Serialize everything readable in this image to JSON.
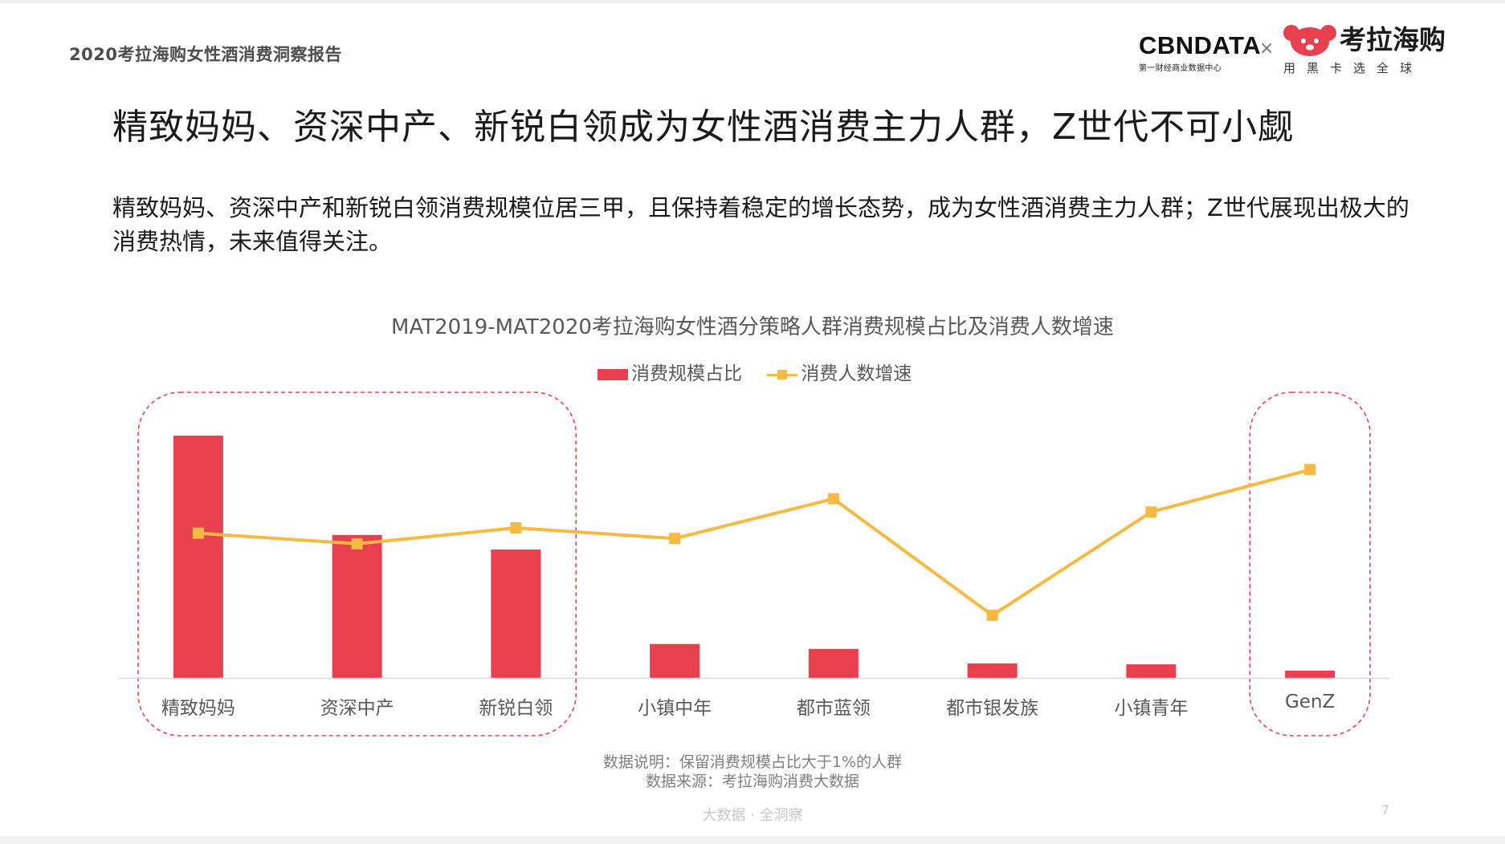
{
  "report_name": "2020考拉海购女性酒消费洞察报告",
  "logos": {
    "cbn_name": "CBNDATA",
    "cbn_sub": "第一财经商业数据中心",
    "separator": "×",
    "kaola_name": "考拉海购",
    "kaola_slogan": "用黑卡选全球"
  },
  "headline": "精致妈妈、资深中产、新锐白领成为女性酒消费主力人群，Z世代不可小觑",
  "summary": "精致妈妈、资深中产和新锐白领消费规模位居三甲，且保持着稳定的增长态势，成为女性酒消费主力人群；Z世代展现出极大的消费热情，未来值得关注。",
  "chart_data": {
    "type": "bar",
    "title": "MAT2019-MAT2020考拉海购女性酒分策略人群消费规模占比及消费人数增速",
    "categories": [
      "精致妈妈",
      "资深中产",
      "新锐白领",
      "小镇中年",
      "都市蓝领",
      "都市银发族",
      "小镇青年",
      "GenZ"
    ],
    "series": [
      {
        "name": "消费规模占比",
        "type": "bar",
        "color": "#e8404f",
        "values": [
          100,
          59,
          53,
          14,
          12,
          6,
          5.6,
          3
        ]
      },
      {
        "name": "消费人数增速",
        "type": "line",
        "color": "#f6b942",
        "values": [
          58,
          54,
          60,
          56,
          71,
          27,
          66,
          82
        ]
      }
    ],
    "highlighted_groups": [
      [
        "精致妈妈",
        "资深中产",
        "新锐白领"
      ],
      [
        "GenZ"
      ]
    ],
    "highlight_color": "#e8404f",
    "grid": false,
    "legend_position": "top"
  },
  "notes": {
    "data_note": "数据说明：保留消费规模占比大于1%的人群",
    "data_source": "数据来源：考拉海购消费大数据"
  },
  "footer": {
    "text": "大数据 · 全洞察",
    "page": "7"
  }
}
